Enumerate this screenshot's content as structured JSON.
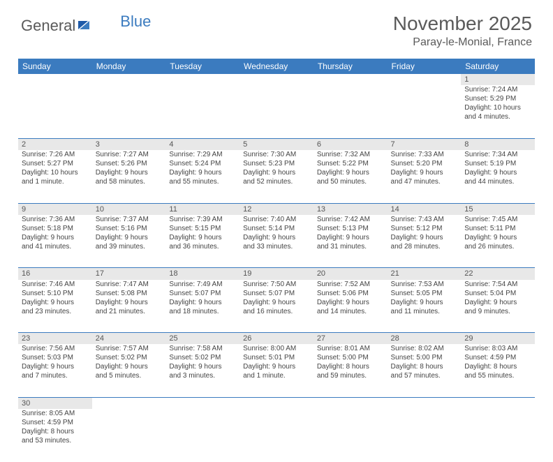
{
  "logo": {
    "text1": "General",
    "text2": "Blue"
  },
  "title": "November 2025",
  "location": "Paray-le-Monial, France",
  "colors": {
    "header_bg": "#3b7bbf",
    "header_text": "#ffffff",
    "daynum_bg": "#e8e8e8",
    "border": "#3b7bbf",
    "body_text": "#444444",
    "title_text": "#5a5a5a"
  },
  "weekdays": [
    "Sunday",
    "Monday",
    "Tuesday",
    "Wednesday",
    "Thursday",
    "Friday",
    "Saturday"
  ],
  "days": {
    "1": {
      "sunrise": "7:24 AM",
      "sunset": "5:29 PM",
      "daylight": "10 hours and 4 minutes."
    },
    "2": {
      "sunrise": "7:26 AM",
      "sunset": "5:27 PM",
      "daylight": "10 hours and 1 minute."
    },
    "3": {
      "sunrise": "7:27 AM",
      "sunset": "5:26 PM",
      "daylight": "9 hours and 58 minutes."
    },
    "4": {
      "sunrise": "7:29 AM",
      "sunset": "5:24 PM",
      "daylight": "9 hours and 55 minutes."
    },
    "5": {
      "sunrise": "7:30 AM",
      "sunset": "5:23 PM",
      "daylight": "9 hours and 52 minutes."
    },
    "6": {
      "sunrise": "7:32 AM",
      "sunset": "5:22 PM",
      "daylight": "9 hours and 50 minutes."
    },
    "7": {
      "sunrise": "7:33 AM",
      "sunset": "5:20 PM",
      "daylight": "9 hours and 47 minutes."
    },
    "8": {
      "sunrise": "7:34 AM",
      "sunset": "5:19 PM",
      "daylight": "9 hours and 44 minutes."
    },
    "9": {
      "sunrise": "7:36 AM",
      "sunset": "5:18 PM",
      "daylight": "9 hours and 41 minutes."
    },
    "10": {
      "sunrise": "7:37 AM",
      "sunset": "5:16 PM",
      "daylight": "9 hours and 39 minutes."
    },
    "11": {
      "sunrise": "7:39 AM",
      "sunset": "5:15 PM",
      "daylight": "9 hours and 36 minutes."
    },
    "12": {
      "sunrise": "7:40 AM",
      "sunset": "5:14 PM",
      "daylight": "9 hours and 33 minutes."
    },
    "13": {
      "sunrise": "7:42 AM",
      "sunset": "5:13 PM",
      "daylight": "9 hours and 31 minutes."
    },
    "14": {
      "sunrise": "7:43 AM",
      "sunset": "5:12 PM",
      "daylight": "9 hours and 28 minutes."
    },
    "15": {
      "sunrise": "7:45 AM",
      "sunset": "5:11 PM",
      "daylight": "9 hours and 26 minutes."
    },
    "16": {
      "sunrise": "7:46 AM",
      "sunset": "5:10 PM",
      "daylight": "9 hours and 23 minutes."
    },
    "17": {
      "sunrise": "7:47 AM",
      "sunset": "5:08 PM",
      "daylight": "9 hours and 21 minutes."
    },
    "18": {
      "sunrise": "7:49 AM",
      "sunset": "5:07 PM",
      "daylight": "9 hours and 18 minutes."
    },
    "19": {
      "sunrise": "7:50 AM",
      "sunset": "5:07 PM",
      "daylight": "9 hours and 16 minutes."
    },
    "20": {
      "sunrise": "7:52 AM",
      "sunset": "5:06 PM",
      "daylight": "9 hours and 14 minutes."
    },
    "21": {
      "sunrise": "7:53 AM",
      "sunset": "5:05 PM",
      "daylight": "9 hours and 11 minutes."
    },
    "22": {
      "sunrise": "7:54 AM",
      "sunset": "5:04 PM",
      "daylight": "9 hours and 9 minutes."
    },
    "23": {
      "sunrise": "7:56 AM",
      "sunset": "5:03 PM",
      "daylight": "9 hours and 7 minutes."
    },
    "24": {
      "sunrise": "7:57 AM",
      "sunset": "5:02 PM",
      "daylight": "9 hours and 5 minutes."
    },
    "25": {
      "sunrise": "7:58 AM",
      "sunset": "5:02 PM",
      "daylight": "9 hours and 3 minutes."
    },
    "26": {
      "sunrise": "8:00 AM",
      "sunset": "5:01 PM",
      "daylight": "9 hours and 1 minute."
    },
    "27": {
      "sunrise": "8:01 AM",
      "sunset": "5:00 PM",
      "daylight": "8 hours and 59 minutes."
    },
    "28": {
      "sunrise": "8:02 AM",
      "sunset": "5:00 PM",
      "daylight": "8 hours and 57 minutes."
    },
    "29": {
      "sunrise": "8:03 AM",
      "sunset": "4:59 PM",
      "daylight": "8 hours and 55 minutes."
    },
    "30": {
      "sunrise": "8:05 AM",
      "sunset": "4:59 PM",
      "daylight": "8 hours and 53 minutes."
    }
  },
  "labels": {
    "sunrise": "Sunrise:",
    "sunset": "Sunset:",
    "daylight": "Daylight:"
  },
  "layout": {
    "weeks": [
      [
        null,
        null,
        null,
        null,
        null,
        null,
        "1"
      ],
      [
        "2",
        "3",
        "4",
        "5",
        "6",
        "7",
        "8"
      ],
      [
        "9",
        "10",
        "11",
        "12",
        "13",
        "14",
        "15"
      ],
      [
        "16",
        "17",
        "18",
        "19",
        "20",
        "21",
        "22"
      ],
      [
        "23",
        "24",
        "25",
        "26",
        "27",
        "28",
        "29"
      ],
      [
        "30",
        null,
        null,
        null,
        null,
        null,
        null
      ]
    ]
  }
}
